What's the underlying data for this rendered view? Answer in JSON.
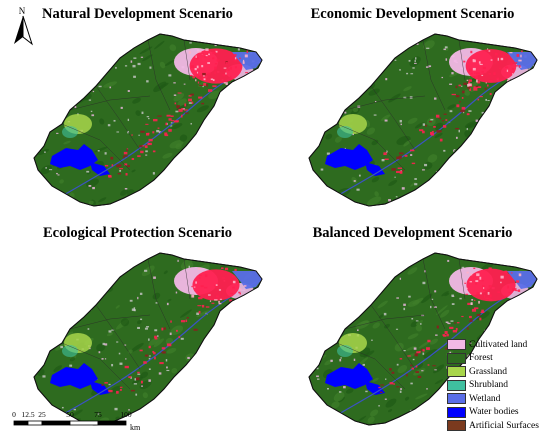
{
  "north_label": "N",
  "panels": [
    {
      "title": "Natural Development Scenario",
      "intensity": 1.0
    },
    {
      "title": "Economic Development Scenario",
      "intensity": 0.85
    },
    {
      "title": "Ecological Protection Scenario",
      "intensity": 0.6
    },
    {
      "title": "Balanced Development Scenario",
      "intensity": 0.75
    }
  ],
  "legend": [
    {
      "label": "Cultivated land",
      "color": "#f2b8e6"
    },
    {
      "label": "Forest",
      "color": "#2e6b1f"
    },
    {
      "label": "Grassland",
      "color": "#a8d64b"
    },
    {
      "label": "Shrubland",
      "color": "#3fbf9f"
    },
    {
      "label": "Wetland",
      "color": "#5a6ee8"
    },
    {
      "label": "Water bodies",
      "color": "#0000ff"
    },
    {
      "label": "Artificial Surfaces",
      "color": "#7b3a1e"
    }
  ],
  "colors": {
    "forest_dark": "#1f5a15",
    "urban": "#ff2050",
    "artificial": "#8b1e1e"
  },
  "scale_bar": {
    "ticks": [
      "0",
      "12.5",
      "25",
      "50",
      "75",
      "100"
    ],
    "tick_values": [
      0,
      12.5,
      25,
      50,
      75,
      100
    ],
    "unit": "km"
  }
}
